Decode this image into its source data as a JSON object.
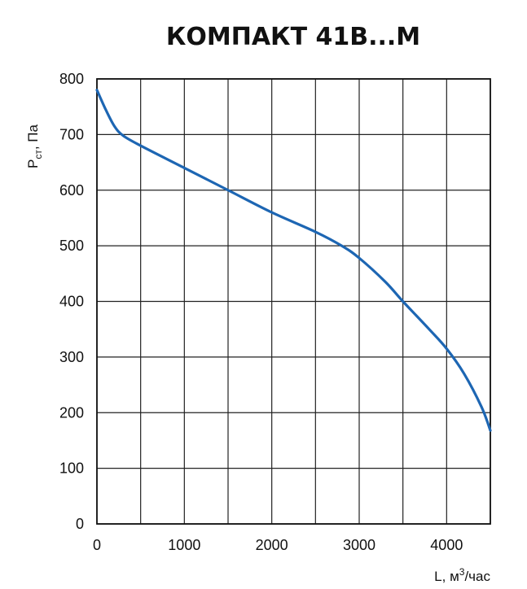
{
  "chart_data": {
    "type": "line",
    "title": "КОМПАКТ 41В...М",
    "xlabel": {
      "prefix": "L, м",
      "sup": "3",
      "suffix": "/час"
    },
    "ylabel": {
      "main": "P",
      "sub": "ст",
      "suffix": ", Па"
    },
    "xlim": [
      0,
      4500
    ],
    "ylim": [
      0,
      800
    ],
    "x_ticks": [
      0,
      1000,
      2000,
      3000,
      4000
    ],
    "y_ticks": [
      0,
      100,
      200,
      300,
      400,
      500,
      600,
      700,
      800
    ],
    "grid": true,
    "series": [
      {
        "color": "#1d66b3",
        "points": [
          [
            0,
            780
          ],
          [
            100,
            745
          ],
          [
            200,
            715
          ],
          [
            300,
            698
          ],
          [
            500,
            680
          ],
          [
            1000,
            640
          ],
          [
            1500,
            600
          ],
          [
            2000,
            560
          ],
          [
            2500,
            525
          ],
          [
            2800,
            500
          ],
          [
            3000,
            478
          ],
          [
            3300,
            435
          ],
          [
            3500,
            400
          ],
          [
            3800,
            350
          ],
          [
            4000,
            315
          ],
          [
            4200,
            270
          ],
          [
            4400,
            210
          ],
          [
            4500,
            168
          ]
        ]
      }
    ]
  }
}
